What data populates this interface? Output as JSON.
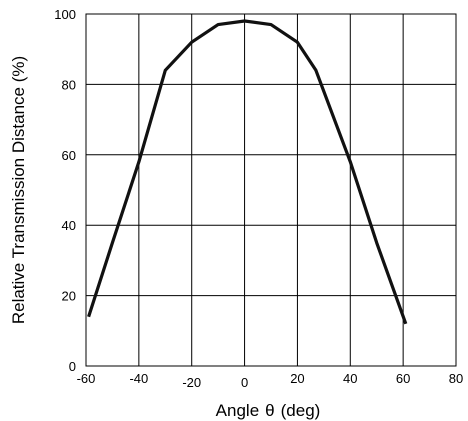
{
  "chart_data": {
    "type": "line",
    "xlabel_prefix": "Angle",
    "xlabel_symbol": "θ",
    "xlabel_suffix": "(deg)",
    "ylabel": "Relative Transmission Distance (%)",
    "xlim": [
      -60,
      80
    ],
    "ylim": [
      0,
      100
    ],
    "x_ticks": [
      "-60",
      "-40",
      "-20",
      "0",
      "20",
      "40",
      "60",
      "80"
    ],
    "y_ticks": [
      "0",
      "20",
      "40",
      "60",
      "80",
      "100"
    ],
    "grid": true,
    "series": [
      {
        "color": "#111111",
        "x": [
          -59,
          -50,
          -40,
          -30,
          -20,
          -10,
          0,
          10,
          20,
          27,
          40,
          50,
          61
        ],
        "y": [
          14,
          35,
          58,
          84,
          92,
          97,
          98,
          97,
          92,
          84,
          58,
          35,
          12
        ]
      }
    ]
  }
}
